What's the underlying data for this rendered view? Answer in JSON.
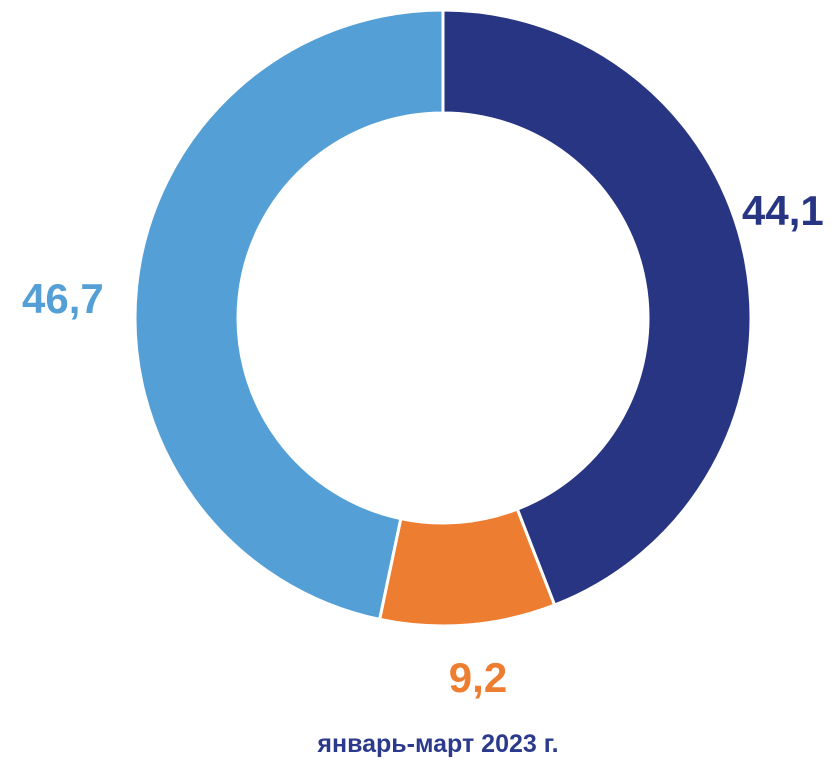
{
  "chart_data": {
    "type": "pie",
    "title": "",
    "caption": "январь-март 2023 г.",
    "slices": [
      {
        "value": 44.1,
        "label": "44,1",
        "color": "#283583"
      },
      {
        "value": 9.2,
        "label": "9,2",
        "color": "#ed7d31"
      },
      {
        "value": 46.7,
        "label": "46,7",
        "color": "#539fd6"
      }
    ],
    "start_angle_deg": 0,
    "direction": "clockwise",
    "donut": true,
    "separator_color": "#ffffff",
    "legend": "none"
  }
}
